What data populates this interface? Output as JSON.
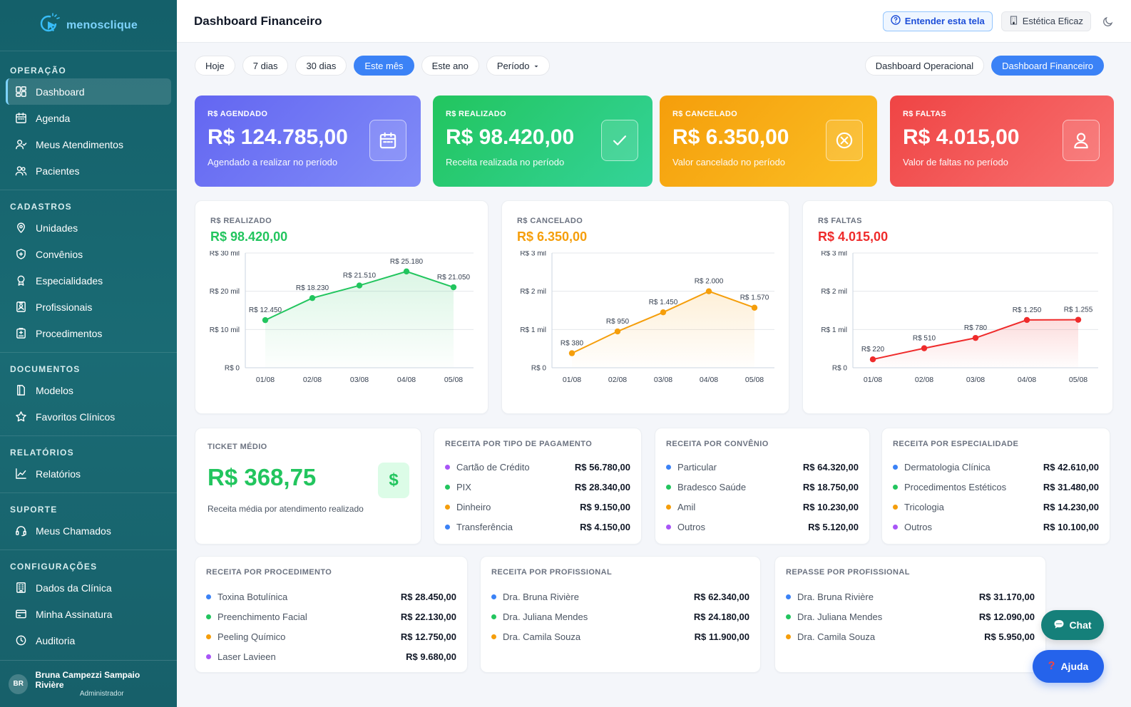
{
  "app": {
    "logo_text": "menosclique"
  },
  "header": {
    "title": "Dashboard Financeiro",
    "help_label": "Entender esta tela",
    "clinic_label": "Estética Eficaz"
  },
  "sidebar": {
    "sections": [
      {
        "title": "OPERAÇÃO",
        "items": [
          {
            "label": "Dashboard",
            "icon": "dashboard-icon",
            "active": true
          },
          {
            "label": "Agenda",
            "icon": "calendar-icon"
          },
          {
            "label": "Meus Atendimentos",
            "icon": "user-check-icon"
          },
          {
            "label": "Pacientes",
            "icon": "users-icon"
          }
        ]
      },
      {
        "title": "CADASTROS",
        "items": [
          {
            "label": "Unidades",
            "icon": "location-pin-icon"
          },
          {
            "label": "Convênios",
            "icon": "shield-icon"
          },
          {
            "label": "Especialidades",
            "icon": "award-icon"
          },
          {
            "label": "Profissionais",
            "icon": "id-badge-icon"
          },
          {
            "label": "Procedimentos",
            "icon": "clipboard-icon"
          }
        ]
      },
      {
        "title": "DOCUMENTOS",
        "items": [
          {
            "label": "Modelos",
            "icon": "document-icon"
          },
          {
            "label": "Favoritos Clínicos",
            "icon": "star-icon"
          }
        ]
      },
      {
        "title": "RELATÓRIOS",
        "items": [
          {
            "label": "Relatórios",
            "icon": "line-chart-icon"
          }
        ]
      },
      {
        "title": "SUPORTE",
        "items": [
          {
            "label": "Meus Chamados",
            "icon": "headset-icon"
          }
        ]
      },
      {
        "title": "CONFIGURAÇÕES",
        "items": [
          {
            "label": "Dados da Clínica",
            "icon": "building-icon"
          },
          {
            "label": "Minha Assinatura",
            "icon": "credit-card-icon"
          },
          {
            "label": "Auditoria",
            "icon": "clock-icon"
          }
        ]
      }
    ],
    "user": {
      "initials": "BR",
      "name": "Bruna Campezzi Sampaio Rivière",
      "role": "Administrador"
    }
  },
  "filters": {
    "periods": [
      "Hoje",
      "7 dias",
      "30 dias",
      "Este mês",
      "Este ano",
      "Período"
    ],
    "active_period": "Este mês",
    "dashboards": [
      "Dashboard Operacional",
      "Dashboard Financeiro"
    ],
    "active_dashboard": "Dashboard Financeiro"
  },
  "kpis": [
    {
      "label": "R$ AGENDADO",
      "value": "R$ 124.785,00",
      "desc": "Agendado a realizar no período",
      "icon": "calendar-icon",
      "color": "#6366f1"
    },
    {
      "label": "R$ REALIZADO",
      "value": "R$ 98.420,00",
      "desc": "Receita realizada no período",
      "icon": "check-icon",
      "color": "#22c55e"
    },
    {
      "label": "R$ CANCELADO",
      "value": "R$ 6.350,00",
      "desc": "Valor cancelado no período",
      "icon": "cancel-circle-icon",
      "color": "#f59e0b"
    },
    {
      "label": "R$ FALTAS",
      "value": "R$ 4.015,00",
      "desc": "Valor de faltas no período",
      "icon": "user-icon",
      "color": "#ef4444"
    }
  ],
  "chart_data": [
    {
      "type": "line",
      "title": "R$ REALIZADO",
      "total": "R$ 98.420,00",
      "color": "#22c55e",
      "x": [
        "01/08",
        "02/08",
        "03/08",
        "04/08",
        "05/08"
      ],
      "values": [
        12450,
        18230,
        21510,
        25180,
        21050
      ],
      "point_labels": [
        "R$ 12.450",
        "R$ 18.230",
        "R$ 21.510",
        "R$ 25.180",
        "R$ 21.050"
      ],
      "y_ticks": [
        0,
        10000,
        20000,
        30000
      ],
      "y_tick_labels": [
        "R$ 0",
        "R$ 10 mil",
        "R$ 20 mil",
        "R$ 30 mil"
      ],
      "ylim": [
        0,
        30000
      ]
    },
    {
      "type": "line",
      "title": "R$ CANCELADO",
      "total": "R$ 6.350,00",
      "color": "#f59e0b",
      "x": [
        "01/08",
        "02/08",
        "03/08",
        "04/08",
        "05/08"
      ],
      "values": [
        380,
        950,
        1450,
        2000,
        1570
      ],
      "point_labels": [
        "R$ 380",
        "R$ 950",
        "R$ 1.450",
        "R$ 2.000",
        "R$ 1.570"
      ],
      "y_ticks": [
        0,
        1000,
        2000,
        3000
      ],
      "y_tick_labels": [
        "R$ 0",
        "R$ 1 mil",
        "R$ 2 mil",
        "R$ 3 mil"
      ],
      "ylim": [
        0,
        3000
      ]
    },
    {
      "type": "line",
      "title": "R$ FALTAS",
      "total": "R$ 4.015,00",
      "color": "#ef2b2b",
      "x": [
        "01/08",
        "02/08",
        "03/08",
        "04/08",
        "05/08"
      ],
      "values": [
        220,
        510,
        780,
        1250,
        1255
      ],
      "point_labels": [
        "R$ 220",
        "R$ 510",
        "R$ 780",
        "R$ 1.250",
        "R$ 1.255"
      ],
      "y_ticks": [
        0,
        1000,
        2000,
        3000
      ],
      "y_tick_labels": [
        "R$ 0",
        "R$ 1 mil",
        "R$ 2 mil",
        "R$ 3 mil"
      ],
      "ylim": [
        0,
        3000
      ]
    }
  ],
  "ticket": {
    "label": "TICKET MÉDIO",
    "value": "R$ 368,75",
    "desc": "Receita média por atendimento realizado",
    "icon_glyph": "$"
  },
  "lists": {
    "payment": {
      "title": "RECEITA POR TIPO DE PAGAMENTO",
      "rows": [
        {
          "label": "Cartão de Crédito",
          "value": "R$ 56.780,00",
          "color": "#a855f7"
        },
        {
          "label": "PIX",
          "value": "R$ 28.340,00",
          "color": "#22c55e"
        },
        {
          "label": "Dinheiro",
          "value": "R$ 9.150,00",
          "color": "#f59e0b"
        },
        {
          "label": "Transferência",
          "value": "R$ 4.150,00",
          "color": "#3b82f6"
        }
      ]
    },
    "insurance": {
      "title": "RECEITA POR CONVÊNIO",
      "rows": [
        {
          "label": "Particular",
          "value": "R$ 64.320,00",
          "color": "#3b82f6"
        },
        {
          "label": "Bradesco Saúde",
          "value": "R$ 18.750,00",
          "color": "#22c55e"
        },
        {
          "label": "Amil",
          "value": "R$ 10.230,00",
          "color": "#f59e0b"
        },
        {
          "label": "Outros",
          "value": "R$ 5.120,00",
          "color": "#a855f7"
        }
      ]
    },
    "specialty": {
      "title": "RECEITA POR ESPECIALIDADE",
      "rows": [
        {
          "label": "Dermatologia Clínica",
          "value": "R$ 42.610,00",
          "color": "#3b82f6"
        },
        {
          "label": "Procedimentos Estéticos",
          "value": "R$ 31.480,00",
          "color": "#22c55e"
        },
        {
          "label": "Tricologia",
          "value": "R$ 14.230,00",
          "color": "#f59e0b"
        },
        {
          "label": "Outros",
          "value": "R$ 10.100,00",
          "color": "#a855f7"
        }
      ]
    },
    "procedure": {
      "title": "RECEITA POR PROCEDIMENTO",
      "rows": [
        {
          "label": "Toxina Botulínica",
          "value": "R$ 28.450,00",
          "color": "#3b82f6"
        },
        {
          "label": "Preenchimento Facial",
          "value": "R$ 22.130,00",
          "color": "#22c55e"
        },
        {
          "label": "Peeling Químico",
          "value": "R$ 12.750,00",
          "color": "#f59e0b"
        },
        {
          "label": "Laser Lavieen",
          "value": "R$ 9.680,00",
          "color": "#a855f7"
        }
      ]
    },
    "professional": {
      "title": "RECEITA POR PROFISSIONAL",
      "rows": [
        {
          "label": "Dra. Bruna Rivière",
          "value": "R$ 62.340,00",
          "color": "#3b82f6"
        },
        {
          "label": "Dra. Juliana Mendes",
          "value": "R$ 24.180,00",
          "color": "#22c55e"
        },
        {
          "label": "Dra. Camila Souza",
          "value": "R$ 11.900,00",
          "color": "#f59e0b"
        }
      ]
    },
    "transfer": {
      "title": "REPASSE POR PROFISSIONAL",
      "rows": [
        {
          "label": "Dra. Bruna Rivière",
          "value": "R$ 31.170,00",
          "color": "#3b82f6"
        },
        {
          "label": "Dra. Juliana Mendes",
          "value": "R$ 12.090,00",
          "color": "#22c55e"
        },
        {
          "label": "Dra. Camila Souza",
          "value": "R$ 5.950,00",
          "color": "#f59e0b"
        }
      ]
    }
  },
  "floating": {
    "chat_label": "Chat",
    "help_label": "Ajuda"
  }
}
